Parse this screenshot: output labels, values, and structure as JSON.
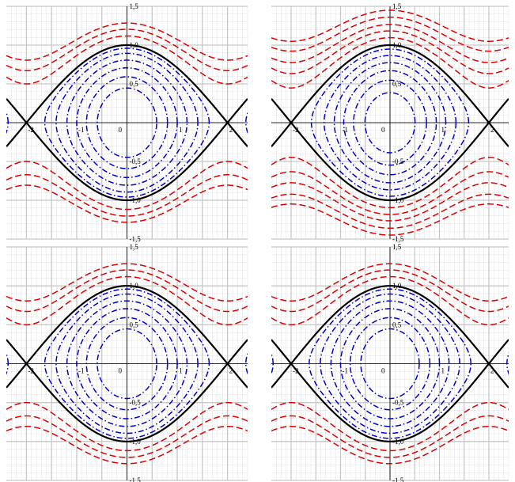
{
  "colors": {
    "separatrix": "#000000",
    "libration": "#0000cc",
    "rotation": "#dd0000",
    "grid": "#c8c8c8",
    "axis": "#000000"
  },
  "chart_data": [
    {
      "type": "line",
      "title": "",
      "xlabel": "",
      "ylabel": "",
      "xlim": [
        -2.4,
        2.4
      ],
      "ylim": [
        -1.5,
        1.5
      ],
      "grid": true,
      "x_ticks": [
        {
          "v": -2,
          "label": "-2"
        },
        {
          "v": -1,
          "label": "-1"
        },
        {
          "v": 1,
          "label": "1"
        },
        {
          "v": 2,
          "label": "2"
        }
      ],
      "y_ticks": [
        {
          "v": -1.5,
          "label": "-1,5"
        },
        {
          "v": -1,
          "label": "-1,0"
        },
        {
          "v": -0.5,
          "label": "-0,5"
        },
        {
          "v": 0.5,
          "label": "0,5"
        },
        {
          "v": 1,
          "label": "1,0"
        },
        {
          "v": 1.5,
          "label": "1,5"
        }
      ],
      "origin_label": "0",
      "series": [
        {
          "style": "solid",
          "color": "#000000",
          "energies": [
            1.0
          ]
        },
        {
          "style": "dashdot",
          "color": "#0000cc",
          "energies": [
            0.2,
            0.35,
            0.5,
            0.65,
            0.8,
            0.92
          ]
        },
        {
          "style": "dashed",
          "color": "#dd0000",
          "energies": [
            1.25,
            1.45,
            1.65
          ]
        }
      ]
    },
    {
      "type": "line",
      "title": "",
      "xlabel": "",
      "ylabel": "",
      "xlim": [
        -2.4,
        2.4
      ],
      "ylim": [
        -1.5,
        1.5
      ],
      "grid": true,
      "x_ticks": [
        {
          "v": -2,
          "label": "-2"
        },
        {
          "v": -1,
          "label": "-1"
        },
        {
          "v": 1,
          "label": "1"
        },
        {
          "v": 2,
          "label": "2"
        }
      ],
      "y_ticks": [
        {
          "v": -1.5,
          "label": "-1,5"
        },
        {
          "v": -1,
          "label": "-1,0"
        },
        {
          "v": -0.5,
          "label": "-0,5"
        },
        {
          "v": 0.5,
          "label": "0,5"
        },
        {
          "v": 1,
          "label": "1,0"
        },
        {
          "v": 1.5,
          "label": "1,5"
        }
      ],
      "origin_label": "0",
      "series": [
        {
          "style": "solid",
          "color": "#000000",
          "energies": [
            1.0
          ]
        },
        {
          "style": "dashdot",
          "color": "#0000cc",
          "energies": [
            0.15,
            0.3,
            0.45,
            0.6,
            0.75,
            0.9
          ]
        },
        {
          "style": "dashed",
          "color": "#dd0000",
          "energies": [
            1.2,
            1.4,
            1.6,
            1.85,
            2.1
          ]
        }
      ]
    },
    {
      "type": "line",
      "title": "",
      "xlabel": "",
      "ylabel": "",
      "xlim": [
        -2.4,
        2.4
      ],
      "ylim": [
        -1.5,
        1.5
      ],
      "grid": true,
      "x_ticks": [
        {
          "v": -2,
          "label": "-2"
        },
        {
          "v": -1,
          "label": "-1"
        },
        {
          "v": 1,
          "label": "1"
        },
        {
          "v": 2,
          "label": "2"
        }
      ],
      "y_ticks": [
        {
          "v": -1.5,
          "label": "-1,5"
        },
        {
          "v": -1,
          "label": "-1,0"
        },
        {
          "v": -0.5,
          "label": "-0,5"
        },
        {
          "v": 0.5,
          "label": "0,5"
        },
        {
          "v": 1,
          "label": "1,0"
        },
        {
          "v": 1.5,
          "label": "1,5"
        }
      ],
      "origin_label": "0",
      "series": [
        {
          "style": "solid",
          "color": "#000000",
          "energies": [
            1.0
          ]
        },
        {
          "style": "dashdot",
          "color": "#0000cc",
          "energies": [
            0.2,
            0.35,
            0.5,
            0.65,
            0.8,
            0.92
          ]
        },
        {
          "style": "dashed",
          "color": "#dd0000",
          "energies": [
            1.25,
            1.45,
            1.65
          ]
        }
      ]
    },
    {
      "type": "line",
      "title": "",
      "xlabel": "",
      "ylabel": "",
      "xlim": [
        -2.4,
        2.4
      ],
      "ylim": [
        -1.5,
        1.5
      ],
      "grid": true,
      "x_ticks": [
        {
          "v": -2,
          "label": "-2"
        },
        {
          "v": -1,
          "label": "-1"
        },
        {
          "v": 1,
          "label": "1"
        },
        {
          "v": 2,
          "label": "2"
        }
      ],
      "y_ticks": [
        {
          "v": -1.5,
          "label": "-1,5"
        },
        {
          "v": -1,
          "label": "-1,0"
        },
        {
          "v": -0.5,
          "label": "-0,5"
        },
        {
          "v": 0.5,
          "label": "0,5"
        },
        {
          "v": 1,
          "label": "1,0"
        },
        {
          "v": 1.5,
          "label": "1,5"
        }
      ],
      "origin_label": "0",
      "series": [
        {
          "style": "solid",
          "color": "#000000",
          "energies": [
            1.0
          ]
        },
        {
          "style": "dashdot",
          "color": "#0000cc",
          "energies": [
            0.2,
            0.35,
            0.5,
            0.65,
            0.8,
            0.92
          ]
        },
        {
          "style": "dashed",
          "color": "#dd0000",
          "energies": [
            1.25,
            1.45,
            1.65
          ]
        }
      ]
    }
  ]
}
